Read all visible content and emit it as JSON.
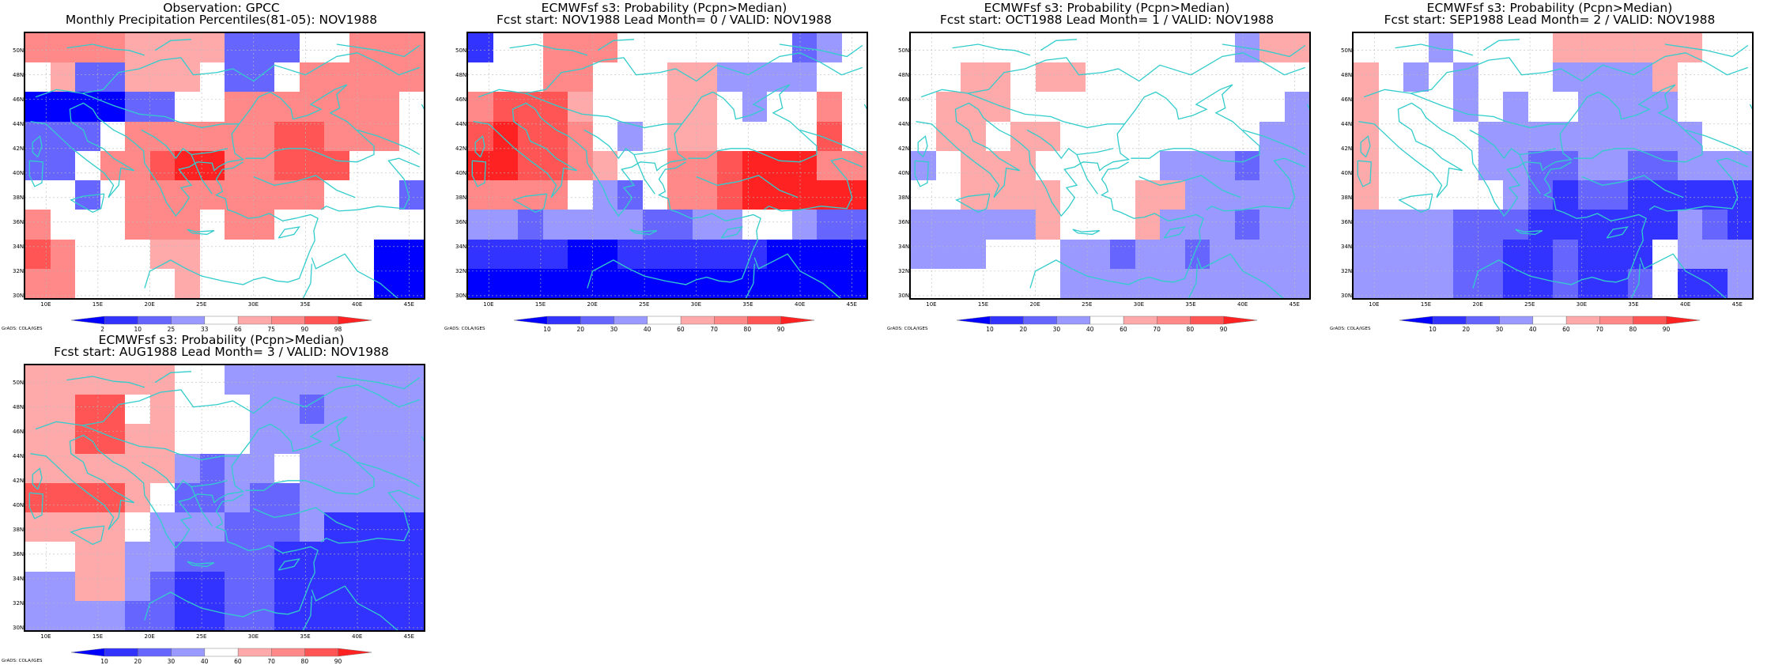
{
  "credit": "GrADS: COLA/IGES",
  "x_ticks": [
    "10E",
    "15E",
    "20E",
    "25E",
    "30E",
    "35E",
    "40E",
    "45E"
  ],
  "y_ticks": [
    "50N",
    "48N",
    "46N",
    "44N",
    "42N",
    "40N",
    "38N",
    "36N",
    "34N",
    "32N",
    "30N"
  ],
  "colors": {
    "coast": "#33cccc",
    "blue_scale": [
      "#0000ff",
      "#3333ff",
      "#6666ff",
      "#9999ff",
      "#bbbbff"
    ],
    "red_scale": [
      "#ffaaaa",
      "#ff8888",
      "#ff5555",
      "#ff2222"
    ]
  },
  "panels": [
    {
      "title1": "Observation: GPCC",
      "title2": "Monthly Precipitation Percentiles(81-05): NOV1988",
      "colorbar_labels": [
        "2",
        "10",
        "25",
        "33",
        "66",
        "75",
        "90",
        "98"
      ]
    },
    {
      "title1": "ECMWFsf s3: Probability (Pcpn>Median)",
      "title2": "Fcst start: NOV1988   Lead Month= 0 / VALID: NOV1988",
      "colorbar_labels": [
        "10",
        "20",
        "30",
        "40",
        "60",
        "70",
        "80",
        "90"
      ]
    },
    {
      "title1": "ECMWFsf s3: Probability (Pcpn>Median)",
      "title2": "Fcst start: OCT1988   Lead Month= 1 / VALID: NOV1988",
      "colorbar_labels": [
        "10",
        "20",
        "30",
        "40",
        "60",
        "70",
        "80",
        "90"
      ]
    },
    {
      "title1": "ECMWFsf s3: Probability (Pcpn>Median)",
      "title2": "Fcst start: SEP1988   Lead Month= 2 / VALID: NOV1988",
      "colorbar_labels": [
        "10",
        "20",
        "30",
        "40",
        "60",
        "70",
        "80",
        "90"
      ]
    },
    {
      "title1": "ECMWFsf s3: Probability (Pcpn>Median)",
      "title2": "Fcst start: AUG1988   Lead Month= 3 / VALID: NOV1988",
      "colorbar_labels": [
        "10",
        "20",
        "30",
        "40",
        "60",
        "70",
        "80",
        "90"
      ]
    }
  ],
  "chart_data": [
    {
      "type": "heatmap",
      "title": "Observation: GPCC / Monthly Precipitation Percentiles(81-05): NOV1988",
      "x_range": [
        "8E",
        "46E"
      ],
      "y_range": [
        "30N",
        "51N"
      ],
      "x": [
        8.5,
        11,
        13.5,
        16,
        18.5,
        21,
        23.5,
        26,
        28.5,
        31,
        33.5,
        36,
        38.5,
        41,
        43.5,
        46
      ],
      "y": [
        51,
        48.5,
        46,
        43.5,
        41,
        38.5,
        36,
        33.5,
        31
      ],
      "legend_levels": [
        "2",
        "10",
        "25",
        "33",
        "66",
        "75",
        "90",
        "98"
      ],
      "values": [
        [
          80,
          80,
          80,
          80,
          70,
          70,
          70,
          70,
          15,
          15,
          15,
          50,
          50,
          80,
          80,
          80
        ],
        [
          50,
          70,
          15,
          15,
          70,
          70,
          70,
          50,
          15,
          15,
          50,
          80,
          80,
          80,
          80,
          80
        ],
        [
          5,
          5,
          5,
          5,
          15,
          15,
          50,
          50,
          80,
          80,
          80,
          80,
          80,
          80,
          80,
          50
        ],
        [
          15,
          15,
          15,
          50,
          80,
          80,
          80,
          80,
          80,
          80,
          90,
          90,
          80,
          80,
          80,
          50
        ],
        [
          15,
          15,
          50,
          80,
          80,
          90,
          95,
          95,
          80,
          80,
          90,
          90,
          90,
          50,
          50,
          50
        ],
        [
          50,
          50,
          15,
          50,
          80,
          80,
          80,
          80,
          80,
          80,
          80,
          80,
          50,
          50,
          50,
          15
        ],
        [
          80,
          50,
          50,
          50,
          80,
          80,
          80,
          50,
          80,
          80,
          50,
          50,
          50,
          50,
          50,
          50
        ],
        [
          90,
          80,
          50,
          50,
          50,
          70,
          70,
          50,
          50,
          50,
          50,
          50,
          50,
          50,
          5,
          5
        ],
        [
          80,
          80,
          50,
          50,
          50,
          50,
          70,
          50,
          50,
          50,
          50,
          50,
          50,
          50,
          5,
          5
        ]
      ]
    },
    {
      "type": "heatmap",
      "title": "ECMWFsf s3: Probability (Pcpn>Median) / Fcst start: NOV1988 Lead Month= 0 / VALID: NOV1988",
      "x_range": [
        "8E",
        "46E"
      ],
      "y_range": [
        "30N",
        "51N"
      ],
      "legend_levels": [
        "10",
        "20",
        "30",
        "40",
        "60",
        "70",
        "80",
        "90"
      ],
      "values": [
        [
          20,
          50,
          50,
          70,
          70,
          70,
          50,
          50,
          50,
          50,
          50,
          50,
          50,
          30,
          35,
          50
        ],
        [
          50,
          50,
          50,
          70,
          70,
          50,
          50,
          50,
          65,
          65,
          35,
          35,
          35,
          35,
          50,
          50
        ],
        [
          70,
          80,
          80,
          80,
          65,
          50,
          50,
          50,
          65,
          65,
          50,
          35,
          50,
          50,
          70,
          50
        ],
        [
          80,
          90,
          80,
          80,
          70,
          50,
          35,
          50,
          65,
          65,
          50,
          50,
          50,
          50,
          80,
          50
        ],
        [
          90,
          90,
          80,
          80,
          70,
          60,
          50,
          50,
          70,
          70,
          80,
          90,
          90,
          90,
          70,
          70
        ],
        [
          70,
          70,
          70,
          70,
          50,
          35,
          30,
          50,
          70,
          70,
          80,
          90,
          90,
          90,
          90,
          90
        ],
        [
          35,
          35,
          30,
          35,
          35,
          35,
          35,
          30,
          30,
          35,
          35,
          50,
          50,
          35,
          30,
          30
        ],
        [
          20,
          20,
          20,
          20,
          10,
          10,
          15,
          15,
          15,
          20,
          20,
          15,
          10,
          10,
          10,
          10
        ],
        [
          10,
          10,
          10,
          10,
          10,
          10,
          10,
          10,
          10,
          10,
          10,
          10,
          10,
          10,
          10,
          10
        ]
      ]
    },
    {
      "type": "heatmap",
      "title": "ECMWFsf s3: Probability (Pcpn>Median) / Fcst start: OCT1988 Lead Month= 1 / VALID: NOV1988",
      "x_range": [
        "8E",
        "46E"
      ],
      "y_range": [
        "30N",
        "51N"
      ],
      "legend_levels": [
        "10",
        "20",
        "30",
        "40",
        "60",
        "70",
        "80",
        "90"
      ],
      "values": [
        [
          50,
          50,
          50,
          50,
          50,
          50,
          50,
          50,
          50,
          50,
          50,
          50,
          50,
          35,
          65,
          65
        ],
        [
          50,
          50,
          65,
          65,
          50,
          65,
          65,
          50,
          50,
          50,
          50,
          50,
          50,
          50,
          50,
          50
        ],
        [
          50,
          65,
          65,
          65,
          50,
          50,
          50,
          50,
          50,
          50,
          50,
          50,
          50,
          50,
          50,
          35
        ],
        [
          50,
          65,
          65,
          50,
          65,
          65,
          50,
          50,
          50,
          50,
          50,
          50,
          50,
          50,
          35,
          35
        ],
        [
          35,
          50,
          65,
          65,
          65,
          50,
          50,
          50,
          50,
          50,
          35,
          35,
          35,
          30,
          35,
          35
        ],
        [
          50,
          50,
          65,
          65,
          65,
          65,
          50,
          50,
          50,
          65,
          65,
          35,
          35,
          35,
          35,
          35
        ],
        [
          35,
          35,
          35,
          35,
          35,
          65,
          50,
          50,
          50,
          65,
          35,
          35,
          35,
          30,
          35,
          35
        ],
        [
          35,
          35,
          35,
          50,
          50,
          50,
          35,
          35,
          30,
          35,
          35,
          30,
          35,
          35,
          35,
          35
        ],
        [
          50,
          50,
          50,
          50,
          50,
          50,
          35,
          35,
          35,
          35,
          35,
          35,
          35,
          35,
          35,
          35
        ]
      ]
    },
    {
      "type": "heatmap",
      "title": "ECMWFsf s3: Probability (Pcpn>Median) / Fcst start: SEP1988 Lead Month= 2 / VALID: NOV1988",
      "x_range": [
        "8E",
        "46E"
      ],
      "y_range": [
        "30N",
        "51N"
      ],
      "legend_levels": [
        "10",
        "20",
        "30",
        "40",
        "60",
        "70",
        "80",
        "90"
      ],
      "values": [
        [
          50,
          50,
          50,
          35,
          50,
          50,
          50,
          50,
          65,
          65,
          65,
          65,
          65,
          65,
          50,
          50
        ],
        [
          65,
          50,
          35,
          50,
          35,
          50,
          50,
          50,
          35,
          35,
          35,
          35,
          65,
          50,
          50,
          50
        ],
        [
          65,
          50,
          50,
          50,
          35,
          50,
          35,
          50,
          50,
          35,
          35,
          35,
          35,
          50,
          50,
          50
        ],
        [
          65,
          50,
          50,
          50,
          50,
          35,
          35,
          35,
          35,
          35,
          35,
          35,
          35,
          35,
          50,
          50
        ],
        [
          65,
          50,
          50,
          50,
          50,
          35,
          35,
          30,
          30,
          35,
          35,
          30,
          30,
          35,
          35,
          35
        ],
        [
          65,
          50,
          50,
          50,
          50,
          50,
          35,
          30,
          20,
          30,
          30,
          20,
          20,
          20,
          20,
          20
        ],
        [
          35,
          35,
          35,
          35,
          30,
          30,
          30,
          20,
          20,
          20,
          20,
          20,
          20,
          35,
          30,
          20
        ],
        [
          35,
          35,
          35,
          35,
          30,
          30,
          20,
          20,
          30,
          20,
          20,
          20,
          50,
          35,
          35,
          35
        ],
        [
          35,
          35,
          35,
          35,
          30,
          30,
          20,
          20,
          30,
          20,
          20,
          30,
          50,
          20,
          20,
          35
        ]
      ]
    },
    {
      "type": "heatmap",
      "title": "ECMWFsf s3: Probability (Pcpn>Median) / Fcst start: AUG1988 Lead Month= 3 / VALID: NOV1988",
      "x_range": [
        "8E",
        "46E"
      ],
      "y_range": [
        "30N",
        "51N"
      ],
      "legend_levels": [
        "10",
        "20",
        "30",
        "40",
        "60",
        "70",
        "80",
        "90"
      ],
      "values": [
        [
          65,
          65,
          65,
          65,
          65,
          65,
          50,
          50,
          35,
          35,
          35,
          35,
          35,
          35,
          35,
          35
        ],
        [
          65,
          65,
          80,
          80,
          50,
          65,
          50,
          50,
          50,
          35,
          35,
          30,
          35,
          35,
          35,
          35
        ],
        [
          65,
          65,
          80,
          80,
          65,
          65,
          50,
          50,
          50,
          35,
          35,
          35,
          35,
          35,
          35,
          35
        ],
        [
          65,
          65,
          65,
          65,
          65,
          65,
          35,
          30,
          35,
          35,
          50,
          35,
          35,
          35,
          35,
          35
        ],
        [
          80,
          80,
          80,
          80,
          65,
          50,
          30,
          30,
          35,
          30,
          30,
          35,
          35,
          35,
          35,
          35
        ],
        [
          65,
          65,
          65,
          65,
          50,
          35,
          35,
          35,
          30,
          30,
          30,
          35,
          20,
          20,
          20,
          20
        ],
        [
          50,
          50,
          65,
          65,
          35,
          35,
          30,
          30,
          30,
          30,
          20,
          20,
          20,
          20,
          20,
          20
        ],
        [
          35,
          35,
          65,
          65,
          35,
          30,
          20,
          20,
          30,
          30,
          20,
          20,
          20,
          20,
          20,
          20
        ],
        [
          35,
          35,
          35,
          35,
          30,
          30,
          20,
          20,
          30,
          30,
          20,
          20,
          20,
          20,
          20,
          20
        ]
      ]
    }
  ]
}
